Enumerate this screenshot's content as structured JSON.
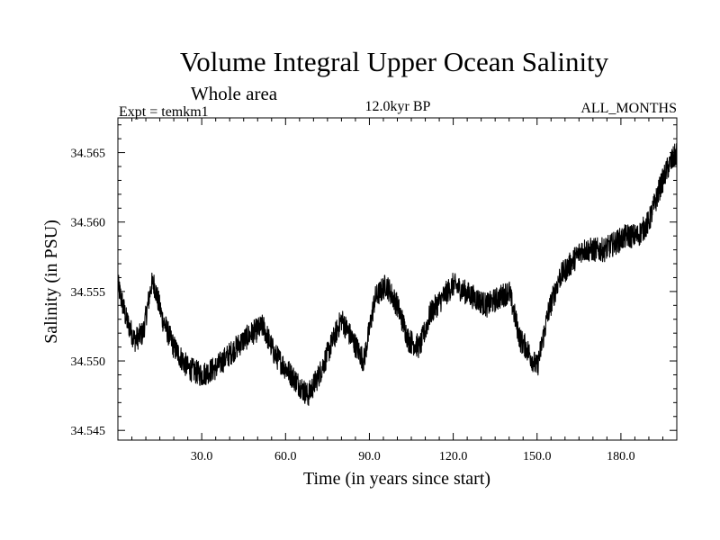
{
  "chart_data": {
    "type": "line",
    "title": "Volume Integral Upper Ocean Salinity",
    "subtitle": "Whole area",
    "left_label": "Expt = temkm1",
    "center_label": "12.0kyr BP",
    "right_label": "ALL_MONTHS",
    "xlabel": "Time (in years since start)",
    "ylabel": "Salinity (in PSU)",
    "xlim": [
      0,
      200
    ],
    "ylim": [
      34.5443,
      34.5675
    ],
    "x_ticks": [
      30,
      60,
      90,
      120,
      150,
      180
    ],
    "x_tick_labels": [
      "30.0",
      "60.0",
      "90.0",
      "120.0",
      "150.0",
      "180.0"
    ],
    "y_ticks": [
      34.545,
      34.55,
      34.555,
      34.56,
      34.565
    ],
    "y_tick_labels": [
      "34.545",
      "34.550",
      "34.555",
      "34.560",
      "34.565"
    ],
    "line_color": "#000000",
    "noise_amplitude": 0.0011,
    "samples_per_year": 12,
    "series": [
      {
        "name": "Salinity",
        "x": [
          0,
          3,
          6,
          9,
          12,
          13,
          16,
          20,
          25,
          30,
          35,
          40,
          45,
          48,
          52,
          56,
          60,
          64,
          68,
          72,
          76,
          80,
          84,
          88,
          92,
          96,
          100,
          104,
          108,
          112,
          116,
          120,
          124,
          128,
          132,
          136,
          140,
          144,
          146,
          150,
          154,
          158,
          162,
          166,
          170,
          174,
          178,
          182,
          186,
          190,
          194,
          197,
          200
        ],
        "values": [
          34.5555,
          34.553,
          34.5515,
          34.552,
          34.5555,
          34.5555,
          34.553,
          34.551,
          34.5495,
          34.549,
          34.5495,
          34.5505,
          34.5515,
          34.552,
          34.5525,
          34.5505,
          34.5495,
          34.5485,
          34.5475,
          34.549,
          34.551,
          34.553,
          34.5515,
          34.55,
          34.5545,
          34.5555,
          34.554,
          34.5515,
          34.551,
          34.5535,
          34.5545,
          34.5555,
          34.555,
          34.5545,
          34.554,
          34.5545,
          34.555,
          34.5515,
          34.551,
          34.5495,
          34.5535,
          34.556,
          34.557,
          34.558,
          34.558,
          34.558,
          34.5585,
          34.559,
          34.559,
          34.56,
          34.5625,
          34.564,
          34.565
        ]
      }
    ]
  }
}
